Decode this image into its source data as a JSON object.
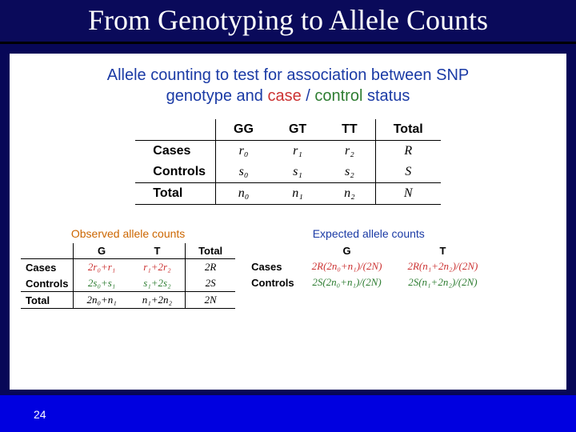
{
  "title": "From Genotyping to Allele Counts",
  "subtitle": {
    "prefix": "Allele counting to test for association between SNP",
    "line2_a": "genotype and ",
    "case": "case",
    "slash": " / ",
    "control": "control",
    "status": " status"
  },
  "genoTable": {
    "cols": [
      "GG",
      "GT",
      "TT",
      "Total"
    ],
    "rows": [
      {
        "hdr": "Cases",
        "c": [
          "r₀",
          "r₁",
          "r₂",
          "R"
        ]
      },
      {
        "hdr": "Controls",
        "c": [
          "s₀",
          "s₁",
          "s₂",
          "S"
        ]
      },
      {
        "hdr": "Total",
        "c": [
          "n₀",
          "n₁",
          "n₂",
          "N"
        ]
      }
    ]
  },
  "observed": {
    "title": "Observed allele counts",
    "cols": [
      "G",
      "T",
      "Total"
    ],
    "rows": [
      {
        "hdr": "Cases",
        "c": [
          "2r₀+r₁",
          "r₁+2r₂",
          "2R"
        ]
      },
      {
        "hdr": "Controls",
        "c": [
          "2s₀+s₁",
          "s₁+2s₂",
          "2S"
        ]
      },
      {
        "hdr": "Total",
        "c": [
          "2n₀+n₁",
          "n₁+2n₂",
          "2N"
        ]
      }
    ]
  },
  "expected": {
    "title": "Expected allele counts",
    "cols": [
      "G",
      "T"
    ],
    "rows": [
      {
        "hdr": "Cases",
        "c": [
          "2R(2n₀+n₁)/(2N)",
          "2R(n₁+2n₂)/(2N)"
        ]
      },
      {
        "hdr": "Controls",
        "c": [
          "2S(2n₀+n₁)/(2N)",
          "2S(n₁+2n₂)/(2N)"
        ]
      }
    ]
  },
  "pageNumber": "24",
  "colors": {
    "slideBg": "#070757",
    "footerBg": "#0000e0",
    "caseColor": "#cc3333",
    "controlColor": "#2e7d32",
    "blueText": "#1a3aa5",
    "obsTitle": "#cc6600"
  }
}
